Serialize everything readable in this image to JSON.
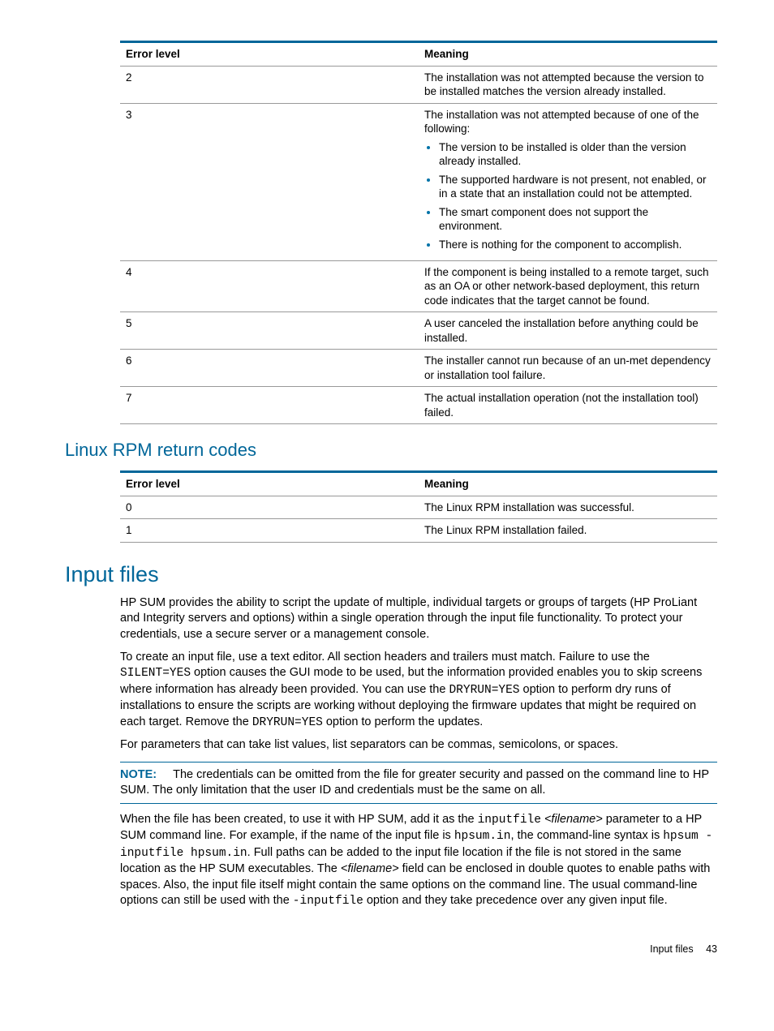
{
  "table1": {
    "headers": [
      "Error level",
      "Meaning"
    ],
    "rows": [
      {
        "level": "2",
        "meaning_text": "The installation was not attempted because the version to be installed matches the version already installed."
      },
      {
        "level": "3",
        "meaning_text": "The installation was not attempted because of one of the following:",
        "bullets": [
          "The version to be installed is older than the version already installed.",
          "The supported hardware is not present, not enabled, or in a state that an installation could not be attempted.",
          "The smart component does not support the environment.",
          "There is nothing for the component to accomplish."
        ]
      },
      {
        "level": "4",
        "meaning_text": "If the component is being installed to a remote target, such as an OA or other network-based deployment, this return code indicates that the target cannot be found."
      },
      {
        "level": "5",
        "meaning_text": "A user canceled the installation before anything could be installed."
      },
      {
        "level": "6",
        "meaning_text": "The installer cannot run because of an un-met dependency or installation tool failure."
      },
      {
        "level": "7",
        "meaning_text": "The actual installation operation (not the installation tool) failed."
      }
    ]
  },
  "heading2": "Linux RPM return codes",
  "table2": {
    "headers": [
      "Error level",
      "Meaning"
    ],
    "rows": [
      {
        "level": "0",
        "meaning_text": "The Linux RPM installation was successful."
      },
      {
        "level": "1",
        "meaning_text": "The Linux RPM installation failed."
      }
    ]
  },
  "heading1": "Input files",
  "para1": "HP SUM provides the ability to script the update of multiple, individual targets or groups of targets (HP ProLiant and Integrity servers and options) within a single operation through the input file functionality. To protect your credentials, use a secure server or a management console.",
  "para2": {
    "a": "To create an input file, use a text editor. All section headers and trailers must match. Failure to use the ",
    "code1": "SILENT=YES",
    "b": " option causes the GUI mode to be used, but the information provided enables you to skip screens where information has already been provided. You can use the ",
    "code2": "DRYRUN=YES",
    "c": " option to perform dry runs of installations to ensure the scripts are working without deploying the firmware updates that might be required on each target. Remove the ",
    "code3": "DRYRUN=YES",
    "d": " option to perform the updates."
  },
  "para3": "For parameters that can take list values, list separators can be commas, semicolons, or spaces.",
  "note": {
    "label": "NOTE:",
    "text": "The credentials can be omitted from the file for greater security and passed on the command line to HP SUM. The only limitation that the user ID and credentials must be the same on all."
  },
  "para4": {
    "a": "When the file has been created, to use it with HP SUM, add it as the ",
    "code1": "inputfile",
    "space1": " ",
    "ital1": "<filename>",
    "b": " parameter to a HP SUM command line. For example, if the name of the input file is ",
    "code2": "hpsum.in",
    "c": ", the command-line syntax is ",
    "code3": "hpsum -inputfile hpsum.in",
    "d": ". Full paths can be added to the input file location if the file is not stored in the same location as the HP SUM executables. The ",
    "ital2": "<filename>",
    "e": " field can be enclosed in double quotes to enable paths with spaces. Also, the input file itself might contain the same options on the command line. The usual command-line options can still be used with the ",
    "code4": "-inputfile",
    "f": " option and they take precedence over any given input file."
  },
  "footer": {
    "text": "Input files",
    "page": "43"
  }
}
